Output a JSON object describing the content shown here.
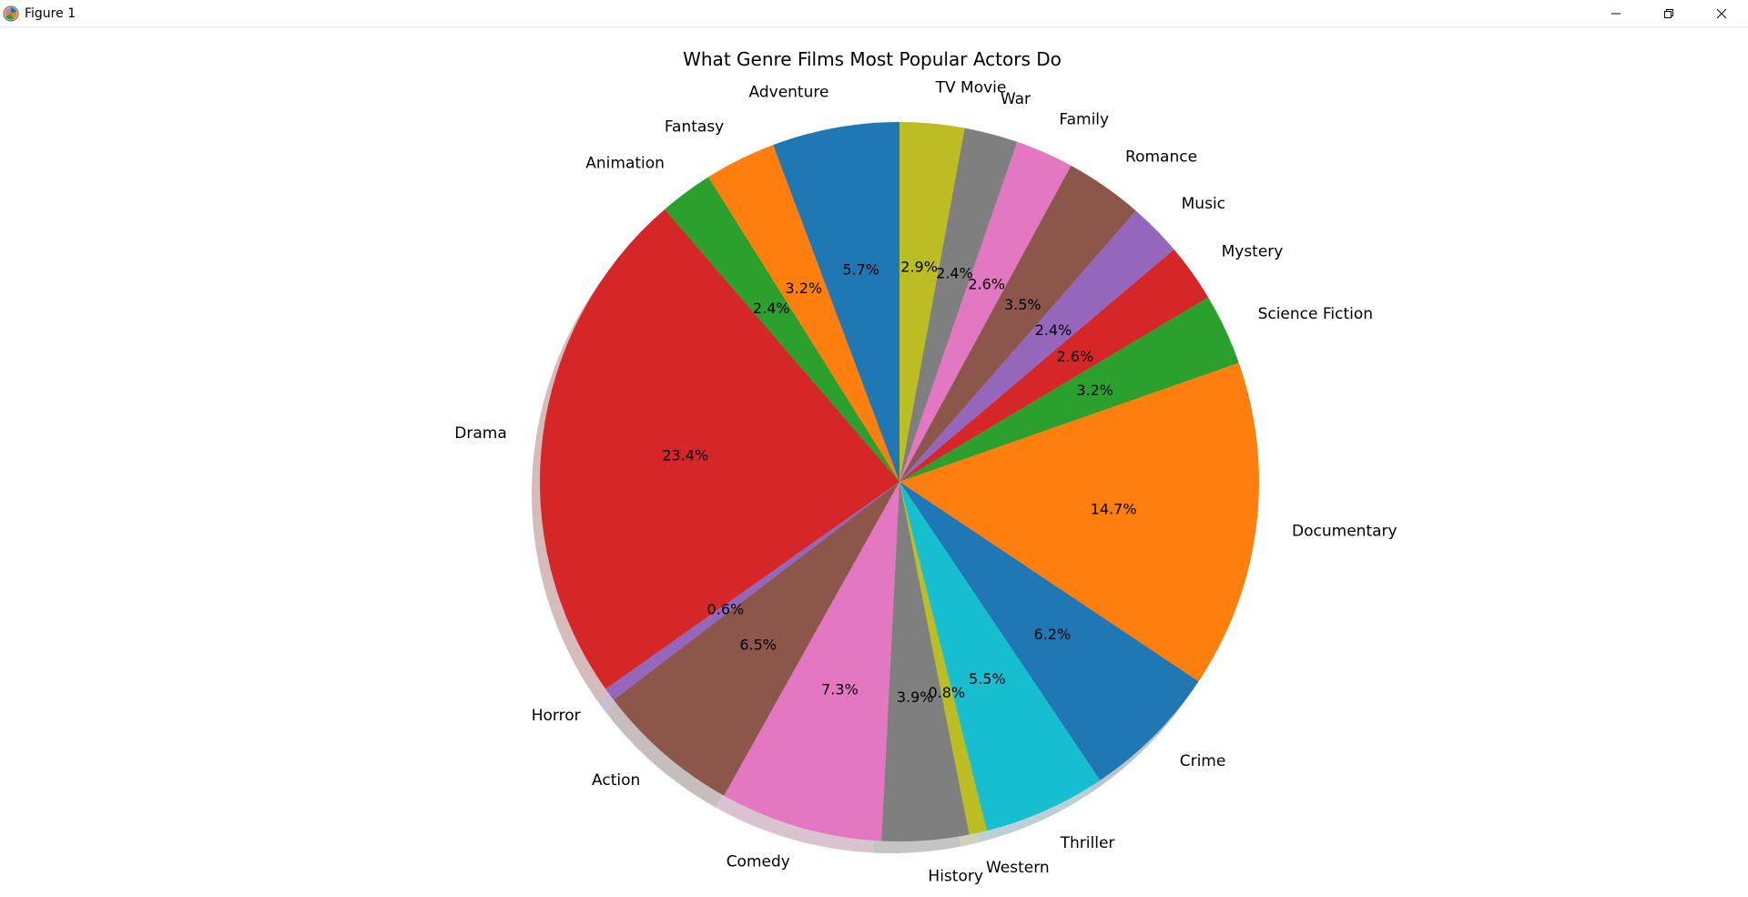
{
  "window": {
    "title": "Figure 1",
    "icon": "matplotlib-icon",
    "controls": [
      "minimize-icon",
      "restore-icon",
      "close-icon"
    ]
  },
  "chart_data": {
    "type": "pie",
    "title": "What Genre Films Most Popular Actors Do",
    "start_angle_deg": 90,
    "direction": "clockwise",
    "shadow": true,
    "slices": [
      {
        "label": "TV Movie",
        "pct": 2.9,
        "pct_label": "2.9%",
        "color": "#bcbd22"
      },
      {
        "label": "War",
        "pct": 2.4,
        "pct_label": "2.4%",
        "color": "#7f7f7f"
      },
      {
        "label": "Family",
        "pct": 2.6,
        "pct_label": "2.6%",
        "color": "#e377c2"
      },
      {
        "label": "Romance",
        "pct": 3.5,
        "pct_label": "3.5%",
        "color": "#8c564b"
      },
      {
        "label": "Music",
        "pct": 2.4,
        "pct_label": "2.4%",
        "color": "#9467bd"
      },
      {
        "label": "Mystery",
        "pct": 2.6,
        "pct_label": "2.6%",
        "color": "#d62728"
      },
      {
        "label": "Science Fiction",
        "pct": 3.2,
        "pct_label": "3.2%",
        "color": "#2ca02c"
      },
      {
        "label": "Documentary",
        "pct": 14.7,
        "pct_label": "14.7%",
        "color": "#ff7f0e"
      },
      {
        "label": "Crime",
        "pct": 6.2,
        "pct_label": "6.2%",
        "color": "#1f77b4"
      },
      {
        "label": "Thriller",
        "pct": 5.5,
        "pct_label": "5.5%",
        "color": "#17becf"
      },
      {
        "label": "Western",
        "pct": 0.8,
        "pct_label": "0.8%",
        "color": "#bcbd22"
      },
      {
        "label": "History",
        "pct": 3.9,
        "pct_label": "3.9%",
        "color": "#7f7f7f"
      },
      {
        "label": "Comedy",
        "pct": 7.3,
        "pct_label": "7.3%",
        "color": "#e377c2"
      },
      {
        "label": "Action",
        "pct": 6.5,
        "pct_label": "6.5%",
        "color": "#8c564b"
      },
      {
        "label": "Horror",
        "pct": 0.6,
        "pct_label": "0.6%",
        "color": "#9467bd"
      },
      {
        "label": "Drama",
        "pct": 23.4,
        "pct_label": "23.4%",
        "color": "#d62728"
      },
      {
        "label": "Animation",
        "pct": 2.4,
        "pct_label": "2.4%",
        "color": "#2ca02c"
      },
      {
        "label": "Fantasy",
        "pct": 3.2,
        "pct_label": "3.2%",
        "color": "#ff7f0e"
      },
      {
        "label": "Adventure",
        "pct": 5.7,
        "pct_label": "5.7%",
        "color": "#1f77b4"
      }
    ]
  }
}
